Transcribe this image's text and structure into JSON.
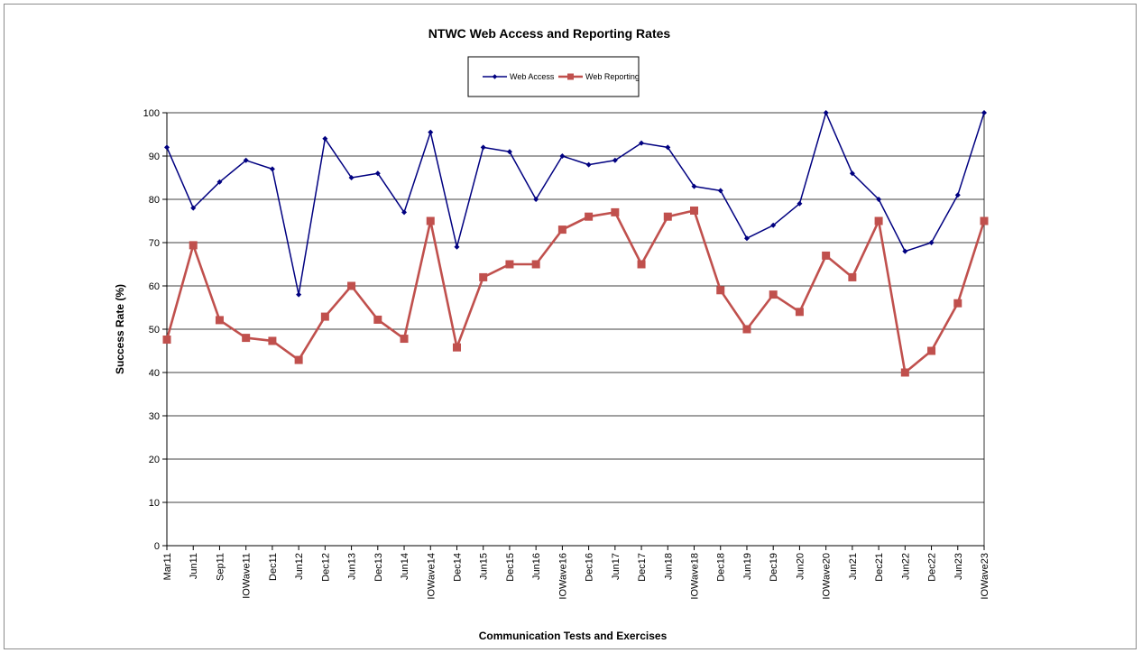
{
  "chart_data": {
    "type": "line",
    "title": "NTWC Web Access and Reporting Rates",
    "xlabel": "Communication Tests and Exercises",
    "ylabel": "Success Rate (%)",
    "ylim": [
      0,
      100
    ],
    "yticks": [
      0,
      10,
      20,
      30,
      40,
      50,
      60,
      70,
      80,
      90,
      100
    ],
    "grid": "horizontal",
    "legend_position": "top-center",
    "categories": [
      "Mar11",
      "Jun11",
      "Sep11",
      "IOWave11",
      "Dec11",
      "Jun12",
      "Dec12",
      "Jun13",
      "Dec13",
      "Jun14",
      "IOWave14",
      "Dec14",
      "Jun15",
      "Dec15",
      "Jun16",
      "IOWave16",
      "Dec16",
      "Jun17",
      "Dec17",
      "Jun18",
      "IOWave18",
      "Dec18",
      "Jun19",
      "Dec19",
      "Jun20",
      "IOWave20",
      "Jun21",
      "Dec21",
      "Jun22",
      "Dec22",
      "Jun23",
      "IOWave23"
    ],
    "series": [
      {
        "name": "Web Access",
        "color": "#000080",
        "marker": "diamond",
        "values": [
          92,
          78,
          84,
          89,
          87,
          58,
          94,
          85,
          86,
          77,
          95.5,
          69,
          92,
          91,
          80,
          90,
          88,
          89,
          93,
          92,
          83,
          82,
          71,
          74,
          79,
          100,
          86,
          80,
          68,
          70,
          81,
          100
        ]
      },
      {
        "name": "Web Reporting",
        "color": "#c0504d",
        "marker": "square",
        "values": [
          47.6,
          69.4,
          52.1,
          48,
          47.3,
          42.9,
          52.9,
          60,
          52.2,
          47.8,
          75,
          45.8,
          62,
          65,
          65,
          73,
          76,
          77,
          65,
          76,
          77.4,
          59,
          50,
          58,
          54,
          67,
          62,
          75,
          40,
          45,
          56,
          75
        ]
      }
    ]
  }
}
